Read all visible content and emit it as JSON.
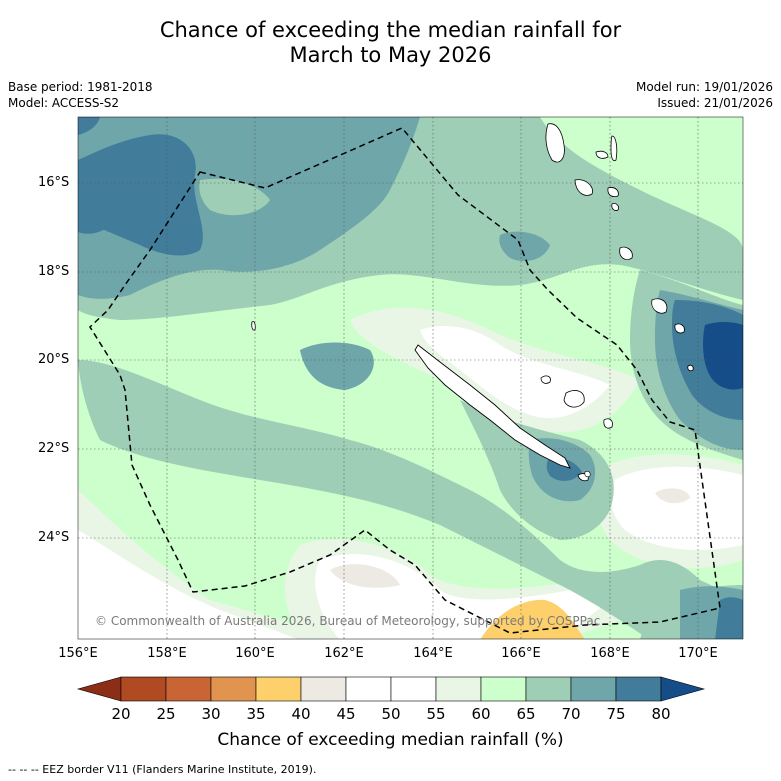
{
  "title_line1": "Chance of exceeding the median rainfall for",
  "title_line2": "March to May 2026",
  "base_period": "Base period: 1981-2018",
  "model": "Model: ACCESS-S2",
  "model_run": "Model run: 19/01/2026",
  "issued": "Issued: 21/01/2026",
  "copyright": "© Commonwealth of Australia 2026, Bureau of Meteorology, supported by COSPPac",
  "lat_ticks": [
    "16°S",
    "18°S",
    "20°S",
    "22°S",
    "24°S"
  ],
  "lon_ticks": [
    "156°E",
    "158°E",
    "160°E",
    "162°E",
    "164°E",
    "166°E",
    "168°E",
    "170°E"
  ],
  "colorbar": {
    "title": "Chance of exceeding median rainfall (%)",
    "labels": [
      "20",
      "25",
      "30",
      "35",
      "40",
      "45",
      "50",
      "55",
      "60",
      "65",
      "70",
      "75",
      "80"
    ],
    "colors": [
      "#8c2d16",
      "#b04a22",
      "#c96535",
      "#e19450",
      "#fdd06c",
      "#ede9e3",
      "#ffffff",
      "#ffffff",
      "#e9f6e6",
      "#ccffcc",
      "#9ecfb6",
      "#6fa6aa",
      "#417c9a",
      "#154d88"
    ]
  },
  "legend_footnote": "-- -- -- EEZ border V11 (Flanders Marine Institute, 2019)."
}
